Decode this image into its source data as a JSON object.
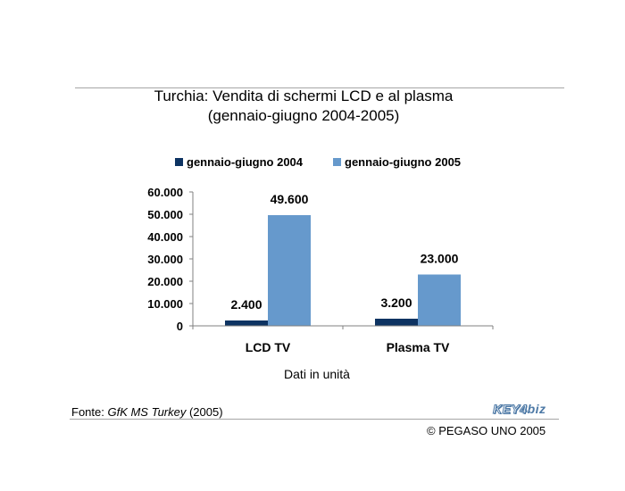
{
  "title": {
    "line1": "Turchia: Vendita di schermi LCD e al plasma",
    "line2": "(gennaio-giugno 2004-2005)"
  },
  "chart_data": {
    "type": "bar",
    "categories": [
      "LCD TV",
      "Plasma TV"
    ],
    "series": [
      {
        "name": "gennaio-giugno 2004",
        "values": [
          2400,
          3200
        ],
        "labels": [
          "2.400",
          "3.200"
        ],
        "color": "#0d3362"
      },
      {
        "name": "gennaio-giugno 2005",
        "values": [
          49600,
          23000
        ],
        "labels": [
          "49.600",
          "23.000"
        ],
        "color": "#6699cc"
      }
    ],
    "y_ticks": [
      0,
      10000,
      20000,
      30000,
      40000,
      50000,
      60000
    ],
    "y_tick_labels": [
      "0",
      "10.000",
      "20.000",
      "30.000",
      "40.000",
      "50.000",
      "60.000"
    ],
    "ylim": [
      0,
      60000
    ],
    "xlabel": "Dati in unità",
    "legend_position": "top",
    "grid": false
  },
  "footer": {
    "source_prefix": "Fonte: ",
    "source_name": "GfK MS Turkey",
    "source_year": " (2005)",
    "logo_part1": "KEY4",
    "logo_part2": "biz",
    "copyright": "© PEGASO UNO 2005"
  },
  "colors": {
    "axis": "#808080",
    "rule": "#a6a6a6"
  }
}
